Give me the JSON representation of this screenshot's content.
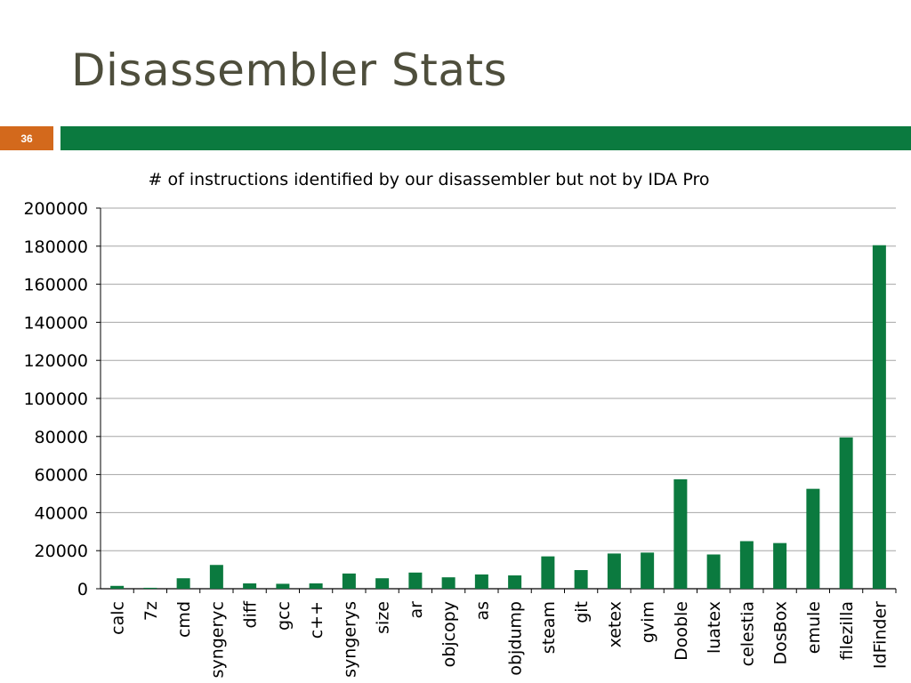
{
  "slide": {
    "title": "Disassembler Stats",
    "number": "36"
  },
  "colors": {
    "title": "#4e4e3c",
    "accent_green": "#0b7a3f",
    "slide_number_bg": "#d3691c",
    "bar": "#0b7a3f",
    "grid": "#a6a6a6"
  },
  "chart_data": {
    "type": "bar",
    "title": "# of instructions identified by our disassembler but not by IDA Pro",
    "xlabel": "",
    "ylabel": "",
    "ylim": [
      0,
      200000
    ],
    "yticks": [
      0,
      20000,
      40000,
      60000,
      80000,
      100000,
      120000,
      140000,
      160000,
      180000,
      200000
    ],
    "grid": true,
    "legend": "none",
    "categories": [
      "calc",
      "7z",
      "cmd",
      "syngeryc",
      "diff",
      "gcc",
      "c++",
      "syngerys",
      "size",
      "ar",
      "objcopy",
      "as",
      "objdump",
      "steam",
      "git",
      "xetex",
      "gvim",
      "Dooble",
      "luatex",
      "celestia",
      "DosBox",
      "emule",
      "filezilla",
      "IdFinder"
    ],
    "values": [
      1500,
      500,
      5500,
      12500,
      2800,
      2600,
      2800,
      8000,
      5500,
      8500,
      6000,
      7500,
      7000,
      17000,
      9800,
      18500,
      19000,
      57500,
      18000,
      25000,
      24000,
      52500,
      79500,
      180500
    ]
  }
}
